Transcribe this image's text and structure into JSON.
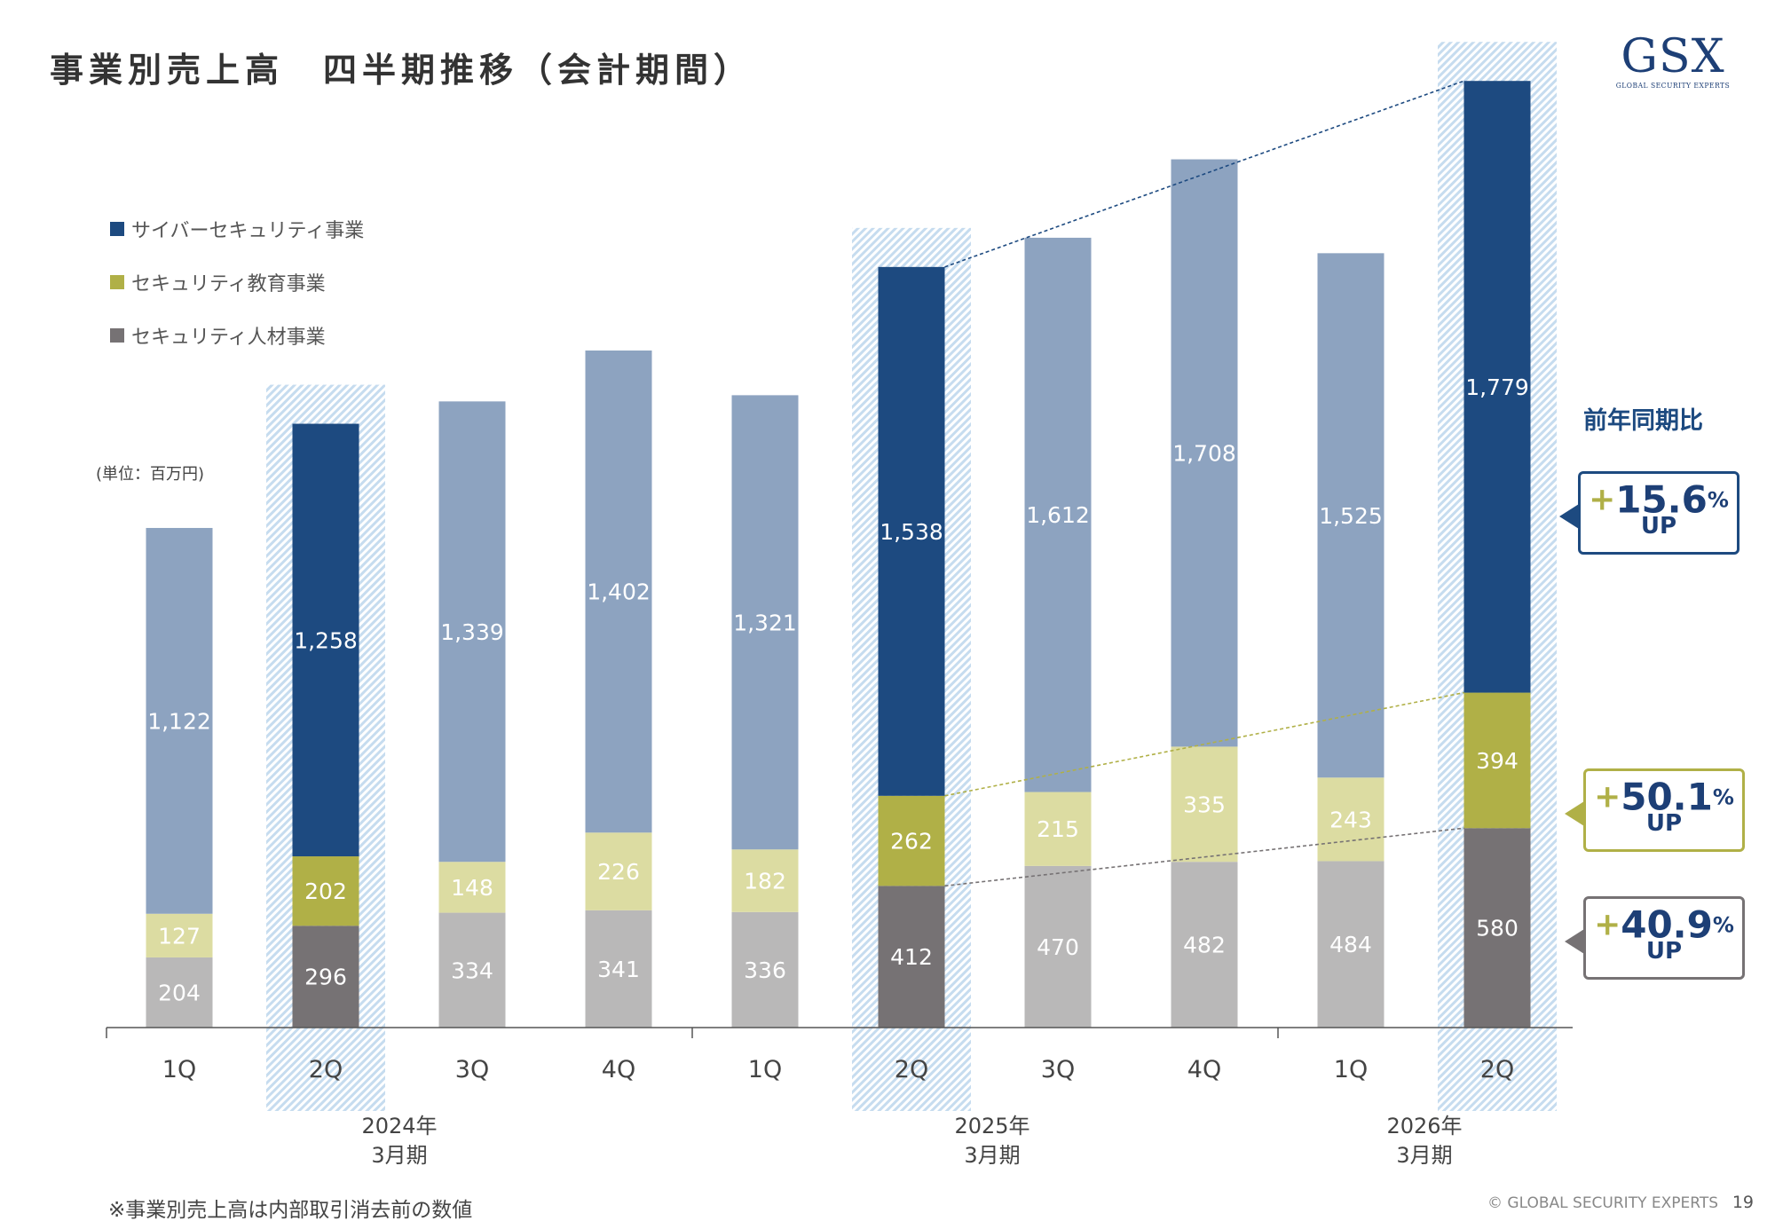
{
  "header": {
    "title_main": "事業別売上高",
    "title_sub": "四半期推移（会計期間）"
  },
  "logo": {
    "main": "GSX",
    "tagline": "GLOBAL SECURITY EXPERTS"
  },
  "unit": "(単位：百万円)",
  "footnote": "※事業別売上高は内部取引消去前の数値",
  "copyright": "© GLOBAL SECURITY EXPERTS",
  "page_number": "19",
  "legend": [
    {
      "label": "サイバーセキュリティ事業",
      "color": "#1d4a80"
    },
    {
      "label": "セキュリティ教育事業",
      "color": "#b0b047"
    },
    {
      "label": "セキュリティ人材事業",
      "color": "#767274"
    }
  ],
  "yoy": {
    "title": "前年同期比",
    "items": [
      {
        "plus": "+",
        "value": "15.6",
        "pct": "%",
        "up": "UP",
        "segment": "cyber",
        "border": "#1d4a80",
        "plus_color": "#b0b047"
      },
      {
        "plus": "+",
        "value": "50.1",
        "pct": "%",
        "up": "UP",
        "segment": "education",
        "border": "#b0b047",
        "plus_color": "#b0b047"
      },
      {
        "plus": "+",
        "value": "40.9",
        "pct": "%",
        "up": "UP",
        "segment": "talent",
        "border": "#767274",
        "plus_color": "#b0b047"
      }
    ]
  },
  "chart_data": {
    "type": "bar",
    "stacked": true,
    "categories": [
      "1Q",
      "2Q",
      "3Q",
      "4Q",
      "1Q",
      "2Q",
      "3Q",
      "4Q",
      "1Q",
      "2Q"
    ],
    "fiscal_years": [
      {
        "line1": "2024年",
        "line2": "3月期"
      },
      {
        "line1": "2025年",
        "line2": "3月期"
      },
      {
        "line1": "2026年",
        "line2": "3月期"
      }
    ],
    "highlighted": [
      1,
      5,
      9
    ],
    "series": [
      {
        "name": "セキュリティ人材事業",
        "values": [
          204,
          296,
          334,
          341,
          336,
          412,
          470,
          482,
          484,
          580
        ],
        "color": "#767274",
        "light_color": "#b9b8b8"
      },
      {
        "name": "セキュリティ教育事業",
        "values": [
          127,
          202,
          148,
          226,
          182,
          262,
          215,
          335,
          243,
          394
        ],
        "color": "#b0b047",
        "light_color": "#dcdca2"
      },
      {
        "name": "サイバーセキュリティ事業",
        "values": [
          1122,
          1258,
          1339,
          1402,
          1321,
          1538,
          1612,
          1708,
          1525,
          1779
        ],
        "color": "#1d4a80",
        "light_color": "#8da3c0"
      }
    ]
  }
}
